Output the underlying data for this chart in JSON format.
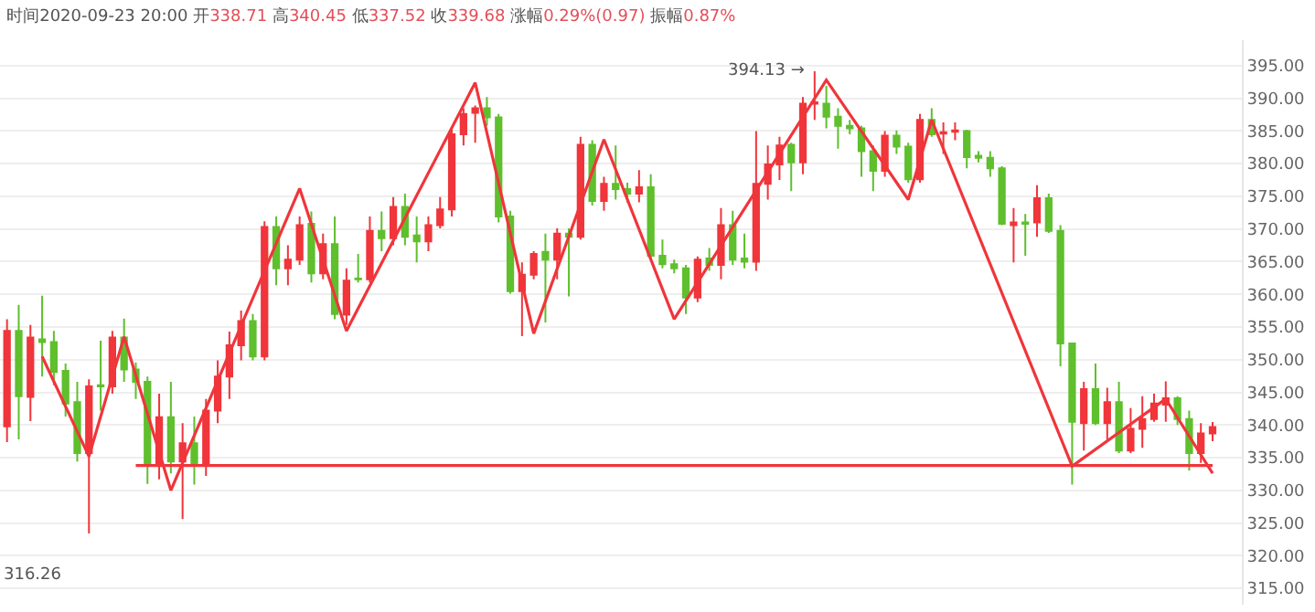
{
  "chart_data": {
    "type": "candlestick",
    "title": "时间2020-09-23 20:00 开338.71 高340.45 低337.52 收339.68 涨幅0.29%(0.97) 振幅0.87%",
    "categories": [
      null,
      null,
      null,
      null,
      null,
      null,
      null,
      null,
      null,
      null,
      null,
      null,
      null,
      null,
      null,
      null,
      null,
      null,
      null,
      null,
      null,
      null,
      null,
      null,
      null,
      null,
      null,
      null,
      null,
      null,
      null,
      null,
      null,
      null,
      null,
      null,
      null,
      null,
      null,
      null,
      null,
      null,
      null,
      null,
      null,
      null,
      null,
      null,
      null,
      null,
      null,
      null,
      null,
      null,
      null,
      null,
      null,
      null,
      null,
      null,
      null,
      null,
      null,
      null,
      null,
      null,
      null,
      null,
      null,
      null,
      null,
      null,
      null,
      null,
      null,
      null,
      null,
      null,
      null,
      null,
      null,
      null,
      null,
      null,
      null,
      null,
      null,
      null,
      null,
      null,
      null,
      null,
      null,
      null,
      null,
      null,
      null,
      null,
      null,
      null,
      null,
      null,
      null,
      null
    ],
    "ohlc": [
      [
        339.8,
        356.2,
        337.4,
        354.4
      ],
      [
        354.4,
        358.4,
        337.8,
        344.4
      ],
      [
        344.3,
        355.3,
        340.6,
        353.4
      ],
      [
        353.1,
        359.8,
        347.4,
        352.7
      ],
      [
        352.7,
        354.4,
        346.1,
        348.1
      ],
      [
        348.3,
        349.4,
        341.3,
        343.3
      ],
      [
        343.5,
        346.6,
        334.4,
        335.7
      ],
      [
        335.7,
        347.0,
        323.4,
        345.9
      ],
      [
        346.1,
        352.9,
        342.2,
        345.9
      ],
      [
        345.9,
        354.4,
        344.8,
        353.4
      ],
      [
        353.4,
        356.3,
        346.6,
        348.5
      ],
      [
        348.5,
        349.6,
        344.0,
        346.6
      ],
      [
        346.6,
        347.4,
        331.0,
        333.9
      ],
      [
        333.9,
        344.8,
        331.7,
        341.2
      ],
      [
        341.2,
        346.6,
        332.6,
        334.4
      ],
      [
        334.4,
        340.3,
        325.6,
        337.2
      ],
      [
        337.2,
        341.3,
        330.9,
        333.9
      ],
      [
        333.9,
        344.0,
        332.2,
        342.2
      ],
      [
        342.2,
        349.9,
        340.3,
        347.4
      ],
      [
        347.4,
        354.3,
        344.0,
        352.2
      ],
      [
        352.2,
        357.5,
        349.9,
        355.9
      ],
      [
        355.9,
        357.0,
        349.9,
        350.5
      ],
      [
        350.5,
        371.2,
        349.9,
        370.3
      ],
      [
        370.3,
        371.9,
        361.4,
        364.0
      ],
      [
        364.0,
        367.5,
        361.4,
        365.3
      ],
      [
        365.3,
        371.9,
        364.5,
        370.6
      ],
      [
        370.8,
        372.7,
        361.8,
        363.2
      ],
      [
        363.2,
        369.3,
        362.3,
        367.7
      ],
      [
        367.7,
        371.9,
        356.2,
        357.0
      ],
      [
        356.9,
        364.0,
        355.3,
        362.1
      ],
      [
        362.4,
        366.2,
        361.8,
        362.3
      ],
      [
        362.3,
        371.9,
        361.8,
        369.7
      ],
      [
        369.7,
        372.7,
        366.6,
        368.6
      ],
      [
        368.6,
        374.9,
        367.5,
        373.4
      ],
      [
        373.4,
        375.4,
        367.5,
        368.8
      ],
      [
        369.0,
        371.9,
        364.9,
        368.1
      ],
      [
        368.1,
        371.9,
        366.6,
        370.6
      ],
      [
        370.6,
        374.9,
        370.1,
        373.0
      ],
      [
        373.0,
        385.4,
        371.9,
        384.5
      ],
      [
        384.5,
        388.5,
        382.8,
        387.6
      ],
      [
        387.8,
        388.9,
        383.2,
        388.5
      ],
      [
        388.5,
        390.2,
        385.8,
        387.1
      ],
      [
        387.1,
        387.6,
        371.0,
        371.9
      ],
      [
        371.9,
        372.8,
        360.1,
        360.5
      ],
      [
        360.5,
        364.9,
        353.6,
        363.0
      ],
      [
        363.0,
        366.6,
        362.3,
        366.2
      ],
      [
        366.5,
        369.3,
        355.7,
        365.3
      ],
      [
        365.3,
        370.1,
        362.3,
        369.3
      ],
      [
        369.3,
        370.1,
        359.7,
        368.8
      ],
      [
        368.8,
        384.1,
        368.4,
        382.9
      ],
      [
        382.9,
        383.6,
        373.6,
        374.3
      ],
      [
        374.3,
        378.0,
        372.8,
        376.9
      ],
      [
        376.9,
        382.8,
        374.5,
        376.1
      ],
      [
        376.1,
        377.1,
        374.1,
        375.4
      ],
      [
        375.4,
        379.0,
        374.1,
        376.4
      ],
      [
        376.4,
        378.4,
        365.3,
        365.9
      ],
      [
        365.9,
        368.4,
        364.0,
        364.6
      ],
      [
        364.6,
        365.3,
        363.2,
        364.0
      ],
      [
        364.0,
        364.5,
        357.0,
        359.5
      ],
      [
        359.5,
        365.8,
        358.8,
        365.3
      ],
      [
        365.5,
        367.1,
        363.6,
        364.5
      ],
      [
        364.5,
        373.2,
        362.3,
        370.6
      ],
      [
        370.6,
        372.8,
        364.5,
        365.3
      ],
      [
        365.5,
        369.3,
        364.0,
        365.0
      ],
      [
        365.0,
        385.0,
        363.6,
        376.9
      ],
      [
        376.9,
        382.8,
        374.5,
        379.9
      ],
      [
        379.9,
        384.1,
        377.5,
        382.8
      ],
      [
        382.9,
        383.2,
        375.8,
        380.2
      ],
      [
        380.2,
        390.2,
        378.4,
        389.2
      ],
      [
        389.2,
        394.13,
        386.7,
        389.4
      ],
      [
        389.2,
        391.9,
        385.4,
        387.2
      ],
      [
        387.2,
        388.5,
        382.3,
        385.8
      ],
      [
        385.8,
        386.7,
        384.5,
        385.4
      ],
      [
        385.4,
        385.8,
        378.0,
        381.9
      ],
      [
        381.9,
        382.8,
        375.8,
        378.9
      ],
      [
        378.9,
        385.0,
        378.0,
        384.3
      ],
      [
        384.3,
        385.1,
        381.5,
        382.6
      ],
      [
        382.6,
        383.2,
        377.1,
        377.6
      ],
      [
        377.6,
        387.6,
        377.1,
        386.7
      ],
      [
        386.7,
        388.5,
        384.1,
        384.5
      ],
      [
        384.6,
        386.3,
        381.5,
        384.8
      ],
      [
        384.9,
        386.3,
        383.6,
        385.1
      ],
      [
        385.0,
        385.2,
        379.3,
        381.0
      ],
      [
        381.2,
        381.9,
        380.2,
        380.9
      ],
      [
        380.9,
        381.9,
        378.0,
        379.3
      ],
      [
        379.3,
        379.6,
        370.6,
        370.8
      ],
      [
        370.6,
        373.2,
        364.9,
        371.0
      ],
      [
        371.0,
        372.3,
        365.9,
        370.8
      ],
      [
        371.0,
        376.7,
        368.8,
        374.7
      ],
      [
        374.7,
        375.4,
        369.4,
        369.7
      ],
      [
        369.7,
        370.6,
        349.0,
        352.5
      ],
      [
        352.5,
        352.5,
        330.9,
        340.5
      ],
      [
        340.3,
        346.6,
        336.1,
        345.5
      ],
      [
        345.5,
        349.4,
        340.0,
        340.3
      ],
      [
        340.3,
        345.7,
        337.8,
        343.5
      ],
      [
        343.5,
        346.6,
        335.7,
        336.1
      ],
      [
        336.1,
        342.6,
        335.7,
        339.4
      ],
      [
        339.4,
        344.4,
        336.5,
        340.9
      ],
      [
        340.9,
        344.8,
        340.5,
        343.3
      ],
      [
        343.1,
        346.7,
        340.5,
        344.1
      ],
      [
        344.1,
        344.4,
        340.0,
        340.9
      ],
      [
        340.9,
        342.2,
        333.0,
        335.7
      ],
      [
        335.7,
        340.3,
        334.2,
        338.7
      ],
      [
        338.71,
        340.45,
        337.52,
        339.68
      ]
    ],
    "colors": [
      "#f0353b",
      "#5fbf2d",
      "#f0353b",
      "#5fbf2d",
      "#5fbf2d",
      "#5fbf2d",
      "#5fbf2d",
      "#f0353b",
      "#5fbf2d",
      "#f0353b",
      "#5fbf2d",
      "#5fbf2d",
      "#5fbf2d",
      "#f0353b",
      "#5fbf2d",
      "#f0353b",
      "#5fbf2d",
      "#f0353b",
      "#f0353b",
      "#f0353b",
      "#f0353b",
      "#5fbf2d",
      "#f0353b",
      "#5fbf2d",
      "#f0353b",
      "#f0353b",
      "#5fbf2d",
      "#f0353b",
      "#5fbf2d",
      "#f0353b",
      "#5fbf2d",
      "#f0353b",
      "#5fbf2d",
      "#f0353b",
      "#5fbf2d",
      "#5fbf2d",
      "#f0353b",
      "#f0353b",
      "#f0353b",
      "#f0353b",
      "#f0353b",
      "#5fbf2d",
      "#5fbf2d",
      "#5fbf2d",
      "#f0353b",
      "#f0353b",
      "#5fbf2d",
      "#f0353b",
      "#5fbf2d",
      "#f0353b",
      "#5fbf2d",
      "#f0353b",
      "#5fbf2d",
      "#5fbf2d",
      "#f0353b",
      "#5fbf2d",
      "#5fbf2d",
      "#5fbf2d",
      "#5fbf2d",
      "#f0353b",
      "#5fbf2d",
      "#f0353b",
      "#5fbf2d",
      "#5fbf2d",
      "#f0353b",
      "#f0353b",
      "#f0353b",
      "#5fbf2d",
      "#f0353b",
      "#f0353b",
      "#5fbf2d",
      "#5fbf2d",
      "#5fbf2d",
      "#5fbf2d",
      "#5fbf2d",
      "#f0353b",
      "#5fbf2d",
      "#5fbf2d",
      "#f0353b",
      "#5fbf2d",
      "#f0353b",
      "#f0353b",
      "#5fbf2d",
      "#5fbf2d",
      "#5fbf2d",
      "#5fbf2d",
      "#f0353b",
      "#5fbf2d",
      "#f0353b",
      "#5fbf2d",
      "#5fbf2d",
      "#5fbf2d",
      "#f0353b",
      "#5fbf2d",
      "#f0353b",
      "#5fbf2d",
      "#f0353b",
      "#f0353b",
      "#f0353b",
      "#f0353b",
      "#5fbf2d",
      "#5fbf2d",
      "#f0353b",
      "#f0353b"
    ],
    "series": [
      {
        "type": "line",
        "color": "#f0353b",
        "values": [
          null,
          null,
          null,
          350.5,
          null,
          null,
          null,
          335.2,
          null,
          null,
          353.5,
          null,
          null,
          null,
          330,
          null,
          null,
          null,
          null,
          null,
          null,
          null,
          null,
          null,
          null,
          376.2,
          null,
          null,
          null,
          354.4,
          null,
          null,
          null,
          null,
          null,
          null,
          null,
          null,
          null,
          null,
          392.4,
          null,
          null,
          null,
          null,
          354,
          null,
          null,
          null,
          null,
          null,
          383.7,
          null,
          null,
          null,
          null,
          null,
          356.2,
          null,
          null,
          null,
          null,
          null,
          null,
          null,
          null,
          null,
          null,
          null,
          null,
          392.8,
          null,
          null,
          null,
          null,
          null,
          null,
          374.5,
          null,
          386.7,
          null,
          null,
          null,
          null,
          null,
          null,
          null,
          null,
          null,
          null,
          null,
          333.7,
          null,
          null,
          null,
          null,
          null,
          null,
          null,
          344,
          null,
          null,
          null,
          332.6
        ]
      },
      {
        "type": "line",
        "color": "#f0353b",
        "values": [
          null,
          null,
          null,
          null,
          null,
          null,
          null,
          null,
          null,
          null,
          null,
          333.8,
          null,
          null,
          null,
          null,
          null,
          null,
          null,
          null,
          null,
          null,
          null,
          null,
          null,
          null,
          null,
          null,
          null,
          null,
          null,
          null,
          null,
          null,
          null,
          null,
          null,
          null,
          null,
          null,
          null,
          null,
          null,
          null,
          null,
          null,
          null,
          null,
          null,
          null,
          null,
          null,
          null,
          null,
          null,
          null,
          null,
          null,
          null,
          null,
          null,
          null,
          null,
          null,
          null,
          null,
          null,
          null,
          null,
          null,
          null,
          null,
          null,
          null,
          null,
          null,
          null,
          null,
          null,
          null,
          null,
          null,
          null,
          null,
          null,
          null,
          null,
          null,
          null,
          null,
          null,
          null,
          null,
          null,
          null,
          null,
          null,
          null,
          null,
          null,
          null,
          null,
          null,
          333.8
        ]
      }
    ],
    "annotations": [
      "394.13 →",
      "316.26"
    ],
    "ylim": [
      312.5,
      398.9
    ],
    "yticks": [
      {
        "value": 315,
        "label": "315.00"
      },
      {
        "value": 320,
        "label": "320.00"
      },
      {
        "value": 325,
        "label": "325.00"
      },
      {
        "value": 330,
        "label": "330.00"
      },
      {
        "value": 335,
        "label": "335.00"
      },
      {
        "value": 340,
        "label": "340.00"
      },
      {
        "value": 345,
        "label": "345.00"
      },
      {
        "value": 350,
        "label": "350.00"
      },
      {
        "value": 355,
        "label": "355.00"
      },
      {
        "value": 360,
        "label": "360.00"
      },
      {
        "value": 365,
        "label": "365.00"
      },
      {
        "value": 370,
        "label": "370.00"
      },
      {
        "value": 375,
        "label": "375.00"
      },
      {
        "value": 380,
        "label": "380.00"
      },
      {
        "value": 385,
        "label": "385.00"
      },
      {
        "value": 390,
        "label": "390.00"
      },
      {
        "value": 395,
        "label": "395.00"
      }
    ],
    "grid": "y",
    "tick_labels": "y"
  }
}
